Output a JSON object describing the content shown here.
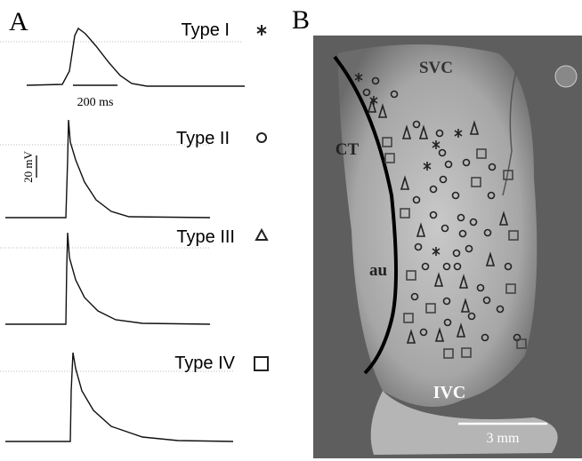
{
  "panels": {
    "a": {
      "label": "A",
      "types": [
        "Type I",
        "Type II",
        "Type III",
        "Type IV"
      ],
      "time_scale": "200 ms",
      "voltage_scale": "20 mV"
    },
    "b": {
      "label": "B",
      "regions": {
        "svc": "SVC",
        "ct": "CT",
        "au": "au",
        "ivc": "IVC"
      },
      "length_scale": "3 mm"
    }
  }
}
